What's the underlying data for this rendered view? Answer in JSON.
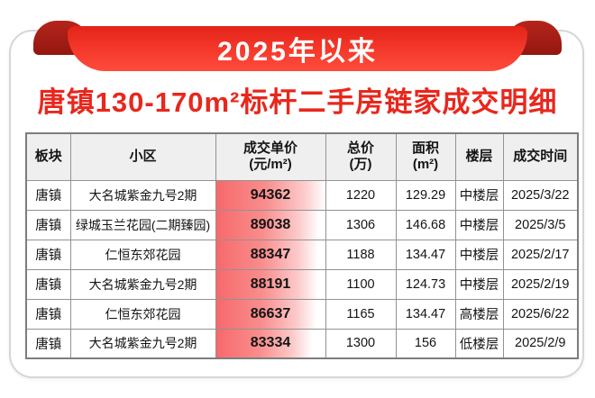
{
  "banner": {
    "label": "2025年以来"
  },
  "title": "唐镇130-170m²标杆二手房链家成交明细",
  "colors": {
    "accent_red": "#e8271d",
    "banner_gradient_top": "#e32318",
    "banner_gradient_bottom": "#fd4c3c",
    "ribbon_curl": "#a32017",
    "data_bar_red": "#f7696b",
    "header_bg": "#efefef",
    "table_border": "#929292"
  },
  "table": {
    "headers": [
      {
        "line1": "板块",
        "line2": ""
      },
      {
        "line1": "小区",
        "line2": ""
      },
      {
        "line1": "成交单价",
        "line2": "(元/m²)"
      },
      {
        "line1": "总价",
        "line2": "(万)"
      },
      {
        "line1": "面积",
        "line2": "(m²)"
      },
      {
        "line1": "楼层",
        "line2": ""
      },
      {
        "line1": "成交时间",
        "line2": ""
      }
    ],
    "rows": [
      {
        "plate": "唐镇",
        "community": "大名城紫金九号2期",
        "unit_price": "94362",
        "bar_pct": 100,
        "total_price": "1220",
        "area": "129.29",
        "floor": "中楼层",
        "date": "2025/3/22"
      },
      {
        "plate": "唐镇",
        "community": "绿城玉兰花园(二期臻园)",
        "unit_price": "89038",
        "bar_pct": 94.4,
        "total_price": "1306",
        "area": "146.68",
        "floor": "中楼层",
        "date": "2025/3/5"
      },
      {
        "plate": "唐镇",
        "community": "仁恒东郊花园",
        "unit_price": "88347",
        "bar_pct": 93.6,
        "total_price": "1188",
        "area": "134.47",
        "floor": "中楼层",
        "date": "2025/2/17"
      },
      {
        "plate": "唐镇",
        "community": "大名城紫金九号2期",
        "unit_price": "88191",
        "bar_pct": 93.5,
        "total_price": "1100",
        "area": "124.73",
        "floor": "中楼层",
        "date": "2025/2/19"
      },
      {
        "plate": "唐镇",
        "community": "仁恒东郊花园",
        "unit_price": "86637",
        "bar_pct": 91.8,
        "total_price": "1165",
        "area": "134.47",
        "floor": "高楼层",
        "date": "2025/6/22"
      },
      {
        "plate": "唐镇",
        "community": "大名城紫金九号2期",
        "unit_price": "83334",
        "bar_pct": 88.3,
        "total_price": "1300",
        "area": "156",
        "floor": "低楼层",
        "date": "2025/2/9"
      }
    ]
  }
}
